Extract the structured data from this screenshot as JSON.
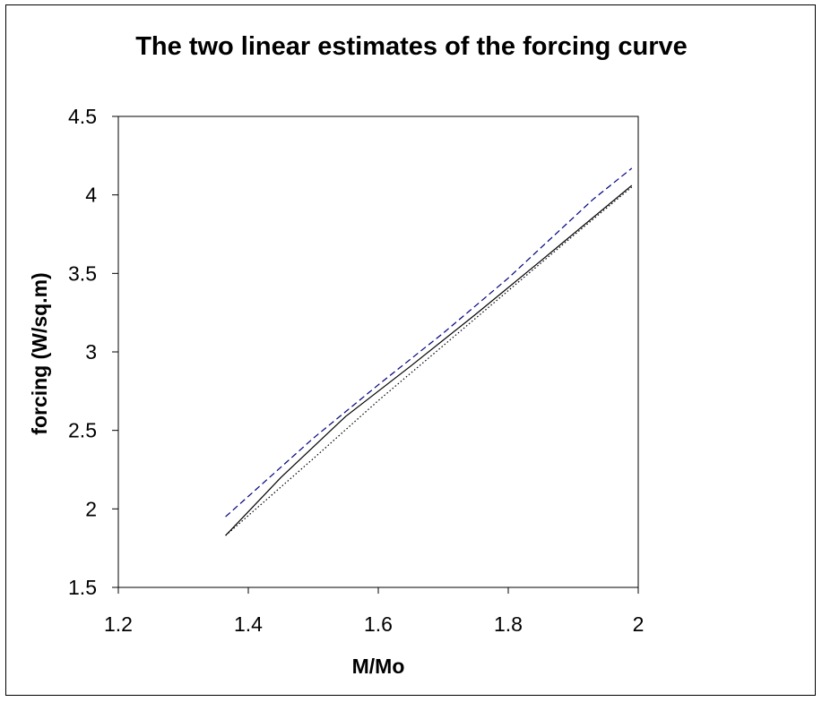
{
  "chart_data": {
    "type": "line",
    "title": "The two linear estimates of the forcing curve",
    "xlabel": "M/Mo",
    "ylabel": "forcing (W/sq.m)",
    "xlim": [
      1.2,
      2
    ],
    "ylim": [
      1.5,
      4.5
    ],
    "xticks": [
      1.2,
      1.4,
      1.6,
      1.8,
      2
    ],
    "yticks": [
      1.5,
      2,
      2.5,
      3,
      3.5,
      4,
      4.5
    ],
    "xtick_labels": [
      "1.2",
      "1.4",
      "1.6",
      "1.8",
      "2"
    ],
    "ytick_labels": [
      "1.5",
      "2",
      "2.5",
      "3",
      "3.5",
      "4",
      "4.5"
    ],
    "grid": false,
    "legend": "none",
    "series": [
      {
        "style": "solid",
        "color": "#000000",
        "x": [
          1.365,
          1.45,
          1.55,
          1.65,
          1.75,
          1.85,
          1.99
        ],
        "y": [
          1.83,
          2.2,
          2.59,
          2.91,
          3.24,
          3.58,
          4.06
        ]
      },
      {
        "style": "dashed",
        "color": "#000080",
        "x": [
          1.365,
          1.5,
          1.6,
          1.7,
          1.8,
          1.93,
          1.99
        ],
        "y": [
          1.95,
          2.45,
          2.79,
          3.12,
          3.47,
          3.97,
          4.17
        ]
      },
      {
        "style": "dotted",
        "color": "#000000",
        "x": [
          1.365,
          1.5,
          1.6,
          1.7,
          1.8,
          1.9,
          1.99
        ],
        "y": [
          1.83,
          2.32,
          2.69,
          3.04,
          3.39,
          3.74,
          4.05
        ]
      }
    ]
  }
}
